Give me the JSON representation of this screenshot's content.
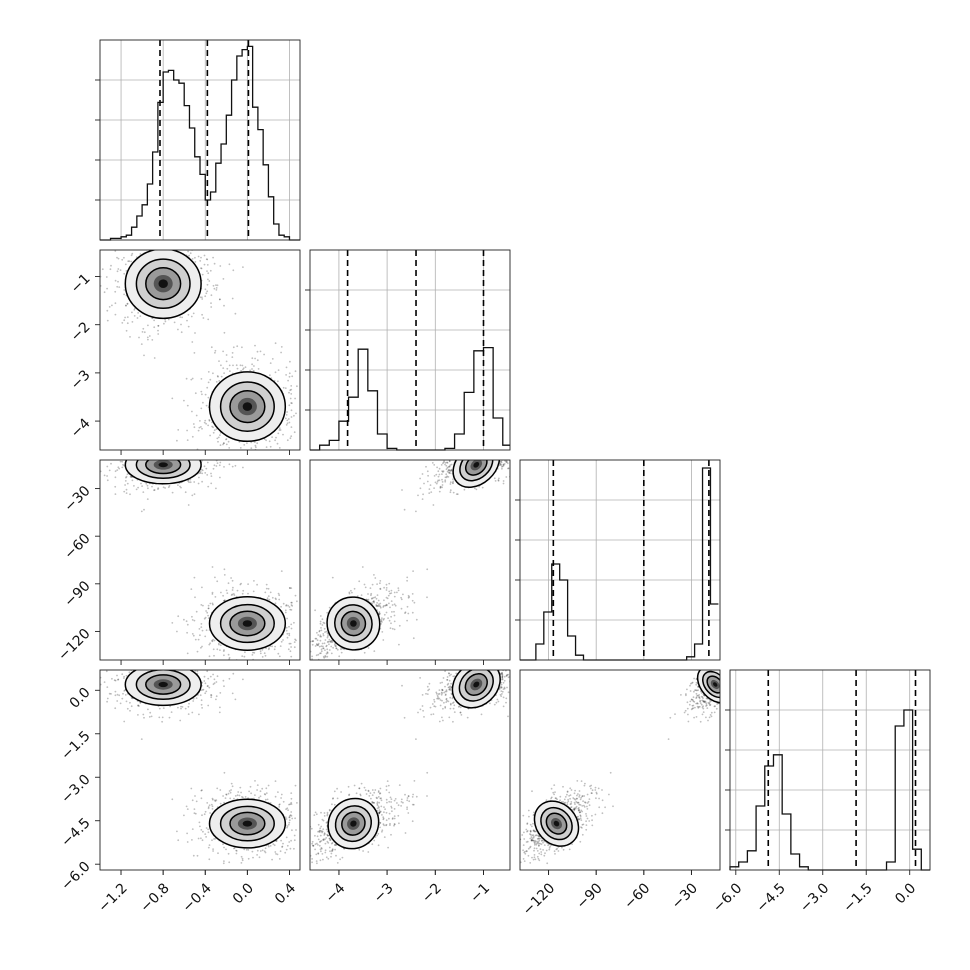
{
  "chart_data": {
    "type": "corner",
    "parameters": [
      {
        "ticks": [
          -1.2,
          -0.8,
          -0.4,
          0.0,
          0.4
        ],
        "tick_labels": [
          "−1.2",
          "−0.8",
          "−0.4",
          "0.0",
          "0.4"
        ],
        "range": [
          -1.4,
          0.5
        ],
        "quantiles": [
          -0.83,
          -0.38,
          0.01
        ],
        "hist": {
          "edges": [
            -1.4,
            -1.3,
            -1.2,
            -1.15,
            -1.1,
            -1.05,
            -1.0,
            -0.95,
            -0.9,
            -0.85,
            -0.8,
            -0.75,
            -0.7,
            -0.65,
            -0.6,
            -0.55,
            -0.5,
            -0.45,
            -0.4,
            -0.35,
            -0.3,
            -0.25,
            -0.2,
            -0.15,
            -0.1,
            -0.05,
            0.0,
            0.05,
            0.1,
            0.15,
            0.2,
            0.25,
            0.3,
            0.35,
            0.4,
            0.45,
            0.5
          ],
          "counts": [
            0,
            0.01,
            0.02,
            0.03,
            0.08,
            0.15,
            0.22,
            0.35,
            0.55,
            0.86,
            1.05,
            1.06,
            1.0,
            0.98,
            0.84,
            0.7,
            0.52,
            0.41,
            0.25,
            0.3,
            0.48,
            0.6,
            0.78,
            1.0,
            1.15,
            1.19,
            1.21,
            0.83,
            0.69,
            0.47,
            0.27,
            0.1,
            0.03,
            0.02,
            0.0,
            0.0
          ]
        }
      },
      {
        "ticks": [
          -4,
          -3,
          -2,
          -1
        ],
        "tick_labels": [
          "−4",
          "−3",
          "−2",
          "−1"
        ],
        "range": [
          -4.6,
          -0.45
        ],
        "quantiles": [
          -3.82,
          -2.4,
          -1.0
        ],
        "hist": {
          "edges": [
            -4.6,
            -4.4,
            -4.2,
            -4.0,
            -3.8,
            -3.6,
            -3.4,
            -3.2,
            -3.0,
            -2.8,
            -2.6,
            -2.4,
            -2.2,
            -2.0,
            -1.8,
            -1.6,
            -1.4,
            -1.2,
            -1.0,
            -0.8,
            -0.6,
            -0.45
          ],
          "counts": [
            0,
            0.03,
            0.06,
            0.18,
            0.33,
            0.63,
            0.37,
            0.1,
            0.01,
            0.0,
            0.0,
            0.0,
            0.0,
            0.0,
            0.01,
            0.1,
            0.36,
            0.62,
            0.64,
            0.2,
            0.03
          ]
        }
      },
      {
        "ticks": [
          -120,
          -90,
          -60,
          -30
        ],
        "tick_labels": [
          "−120",
          "−90",
          "−60",
          "−30"
        ],
        "range": [
          -138,
          -12
        ],
        "quantiles": [
          -117,
          -60,
          -19
        ],
        "hist": {
          "edges": [
            -138,
            -133,
            -128,
            -123,
            -118,
            -113,
            -108,
            -103,
            -98,
            -93,
            -88,
            -83,
            -78,
            -73,
            -68,
            -63,
            -58,
            -53,
            -48,
            -43,
            -38,
            -33,
            -28,
            -23,
            -18,
            -13
          ],
          "counts": [
            0,
            0,
            0.1,
            0.3,
            0.6,
            0.5,
            0.15,
            0.03,
            0,
            0,
            0,
            0,
            0,
            0,
            0,
            0,
            0,
            0,
            0,
            0,
            0,
            0.02,
            0.1,
            1.2,
            0.35
          ]
        }
      },
      {
        "ticks": [
          -6.0,
          -4.5,
          -3.0,
          -1.5,
          0.0
        ],
        "tick_labels": [
          "−6.0",
          "−4.5",
          "−3.0",
          "−1.5",
          "0.0"
        ],
        "range": [
          -6.2,
          0.7
        ],
        "quantiles": [
          -4.88,
          -1.85,
          0.2
        ],
        "hist": {
          "edges": [
            -6.2,
            -5.9,
            -5.6,
            -5.3,
            -5.0,
            -4.7,
            -4.4,
            -4.1,
            -3.8,
            -3.5,
            -3.2,
            -2.9,
            -2.6,
            -2.3,
            -2.0,
            -1.7,
            -1.4,
            -1.1,
            -0.8,
            -0.5,
            -0.2,
            0.1,
            0.4,
            0.7
          ],
          "counts": [
            0.02,
            0.05,
            0.12,
            0.4,
            0.65,
            0.72,
            0.35,
            0.1,
            0.02,
            0.0,
            0,
            0,
            0,
            0,
            0,
            0,
            0,
            0,
            0.05,
            0.9,
            1.0,
            0.13,
            0.0
          ]
        }
      }
    ],
    "hist_ylim": [
      0,
      1.25
    ],
    "hist_yticks": [
      0.25,
      0.5,
      0.75,
      1.0
    ],
    "modes": [
      {
        "mean": [
          -0.8,
          -1.15,
          -15,
          0.2
        ],
        "sd": [
          0.15,
          0.3,
          5.0,
          0.3
        ]
      },
      {
        "mean": [
          0.0,
          -3.7,
          -115,
          -4.6
        ],
        "sd": [
          0.15,
          0.3,
          7.0,
          0.35
        ]
      }
    ],
    "grid": true
  }
}
